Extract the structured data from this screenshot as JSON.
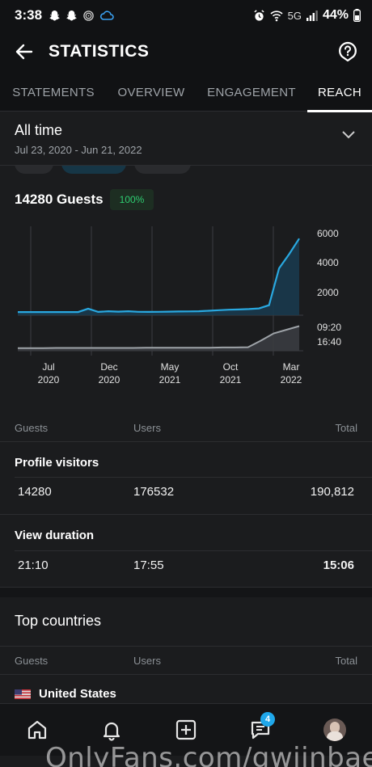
{
  "status_bar": {
    "time": "3:38",
    "network": "5G",
    "battery": "44%"
  },
  "app_bar": {
    "title": "STATISTICS"
  },
  "tabs": [
    {
      "label": "STATEMENTS",
      "active": false
    },
    {
      "label": "OVERVIEW",
      "active": false
    },
    {
      "label": "ENGAGEMENT",
      "active": false
    },
    {
      "label": "REACH",
      "active": true
    }
  ],
  "range": {
    "title": "All time",
    "dates": "Jul 23, 2020 - Jun 21, 2022"
  },
  "summary": {
    "guests_label": "14280 Guests",
    "percent": "100%"
  },
  "chart_data": [
    {
      "type": "area",
      "series": [
        {
          "values": [
            120,
            120,
            120,
            120,
            120,
            120,
            120,
            380,
            130,
            180,
            150,
            180,
            140,
            130,
            140,
            150,
            160,
            170,
            180,
            220,
            260,
            300,
            320,
            350,
            400,
            650,
            3500,
            4600,
            5800
          ]
        }
      ],
      "x_ticks": [
        {
          "month": "Jul",
          "year": "2020"
        },
        {
          "month": "Dec",
          "year": "2020"
        },
        {
          "month": "May",
          "year": "2021"
        },
        {
          "month": "Oct",
          "year": "2021"
        },
        {
          "month": "Mar",
          "year": "2022"
        }
      ],
      "y_ticks": [
        "6000",
        "4000",
        "2000"
      ],
      "ylim": [
        0,
        6000
      ],
      "color": "#29a8e0"
    },
    {
      "type": "area",
      "series": [
        {
          "values": [
            0.4,
            0.4,
            0.4,
            0.5,
            0.5,
            0.5,
            0.5,
            0.5,
            0.5,
            0.5,
            0.6,
            0.6,
            0.6,
            0.6,
            0.6,
            0.6,
            0.7,
            0.7,
            0.8,
            3.5,
            6.5,
            8.0,
            9.5
          ]
        }
      ],
      "y_ticks": [
        "09:20",
        "16:40"
      ],
      "color": "#9ea3a8"
    }
  ],
  "table_headers": {
    "guests": "Guests",
    "users": "Users",
    "total": "Total"
  },
  "profile_visitors": {
    "title": "Profile visitors",
    "guests": "14280",
    "users": "176532",
    "total": "190,812"
  },
  "view_duration": {
    "title": "View duration",
    "guests": "21:10",
    "users": "17:55",
    "total": "15:06"
  },
  "top_countries": {
    "title": "Top countries",
    "headers": {
      "guests": "Guests",
      "users": "Users",
      "total": "Total"
    },
    "first_country": "United States"
  },
  "bottom_nav": {
    "messages_badge": "4"
  },
  "watermark": "OnlyFans.com/gwiinbae"
}
